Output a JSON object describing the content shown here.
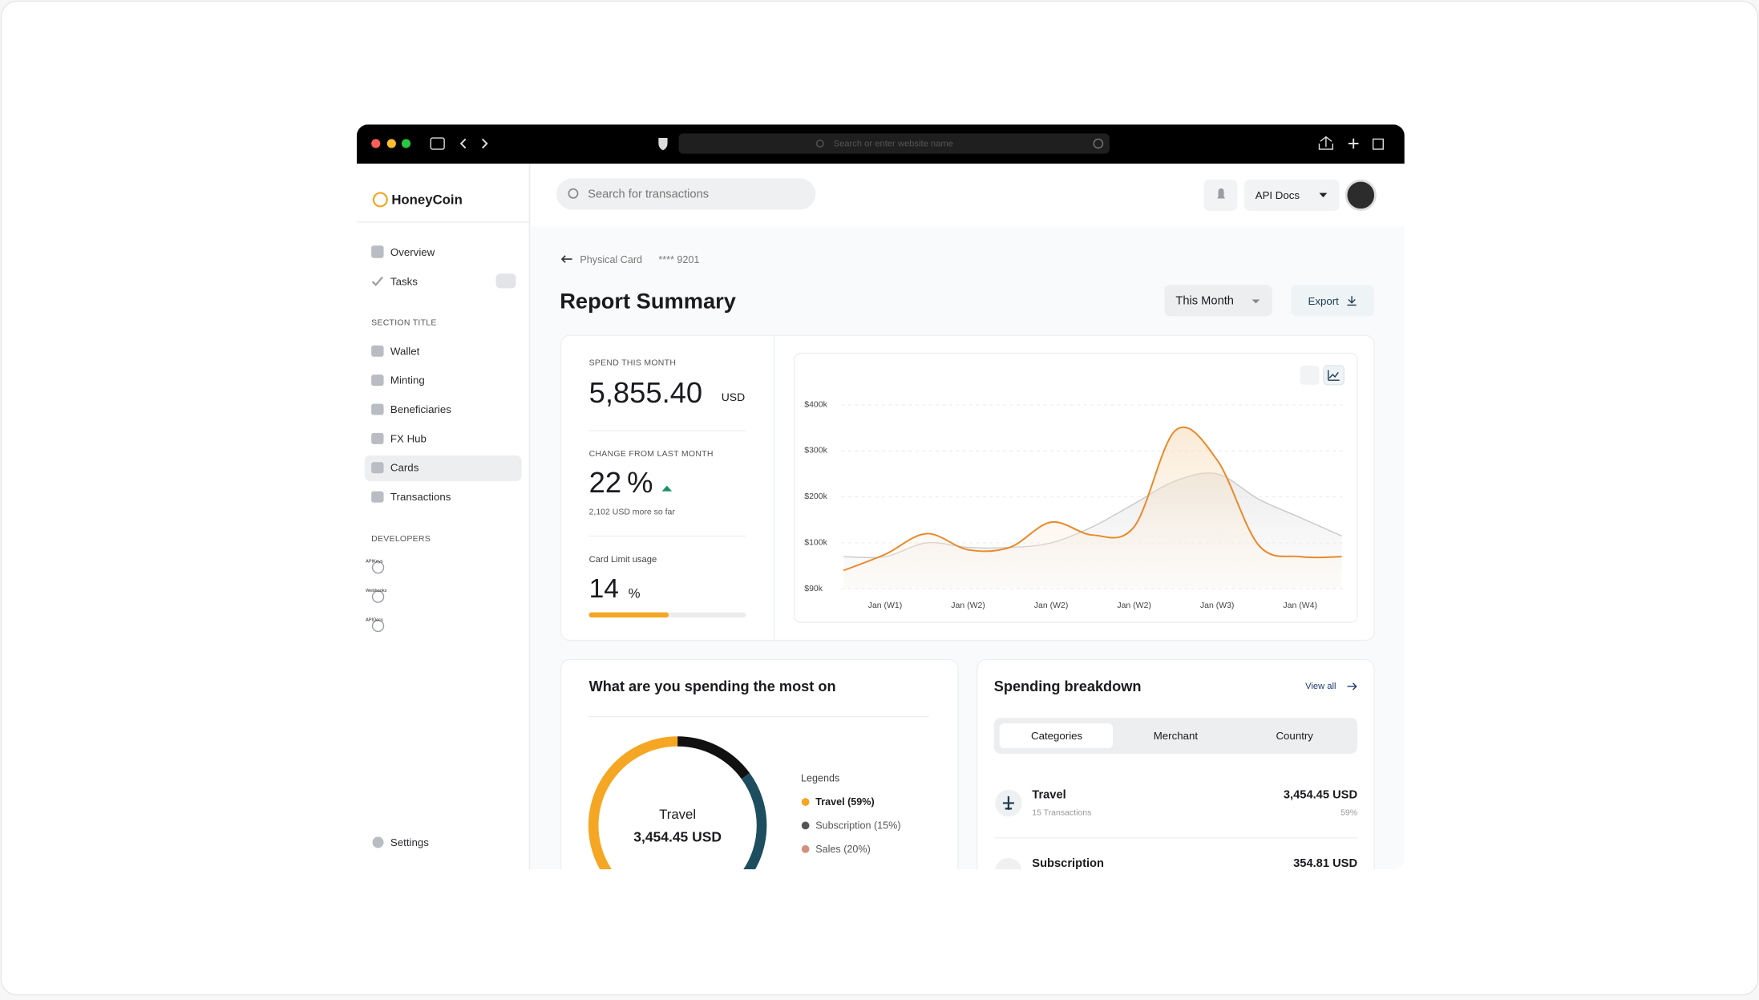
{
  "browser": {
    "address_placeholder": "Search or enter website name"
  },
  "sidebar": {
    "brand": "HoneyCoin",
    "nav": [
      "Overview",
      "Tasks"
    ],
    "section_title": "SECTION TITLE",
    "section_items": [
      "Wallet",
      "Minting",
      "Beneficiaries",
      "FX Hub",
      "Cards",
      "Transactions"
    ],
    "developers_title": "DEVELOPERS",
    "developer_items": [
      "APIKeys",
      "Webhooks",
      "APIDocs"
    ],
    "settings": "Settings"
  },
  "topbar": {
    "search_placeholder": "Search for transactions",
    "api_docs": "API Docs"
  },
  "breadcrumb": {
    "parent": "Physical Card",
    "card": "**** 9201"
  },
  "header": {
    "title": "Report Summary",
    "period": "This Month",
    "export": "Export"
  },
  "stats": [
    {
      "label": "SPEND THIS MONTH",
      "value": "5,855.40",
      "unit": "USD"
    },
    {
      "label": "CHANGE FROM LAST MONTH",
      "value": "22",
      "unit": "%",
      "note": "2,102 USD more so far"
    },
    {
      "label": "Card Limit usage",
      "value": "14",
      "unit": "%"
    }
  ],
  "chart_data": [
    {
      "type": "line",
      "categories": [
        null,
        "Jan (W1)",
        null,
        "Jan (W2)",
        null,
        "Jan (W2)",
        null,
        "Jan (W2)",
        null,
        "Jan (W3)",
        null,
        "Jan (W4)",
        null
      ],
      "series": [
        {
          "color": "#c8c8c8",
          "values": [
            97000,
            97000,
            100000,
            99000,
            99000,
            100000,
            135000,
            185000,
            235000,
            250000,
            195000,
            155000,
            115000
          ]
        },
        {
          "color": "#e8892a",
          "values": [
            94000,
            97500,
            120000,
            98500,
            99000,
            145000,
            117000,
            135000,
            345000,
            280000,
            99500,
            97000,
            97000
          ]
        }
      ],
      "ylim": [
        90000,
        400000
      ],
      "yticks": [
        {
          "value": 90000,
          "label": "$90k"
        },
        {
          "value": 100000,
          "label": "$100k"
        },
        {
          "value": 200000,
          "label": "$200k"
        },
        {
          "value": 300000,
          "label": "$300k"
        },
        {
          "value": 400000,
          "label": "$400k"
        }
      ],
      "grid": true
    },
    {
      "type": "pie",
      "title": "What are you spending the most on",
      "legend_title": "Legends",
      "center_label": "Travel",
      "center_value": "3,454.45 USD",
      "categories": [
        "Travel (59%)",
        "Subscription (15%)",
        "Sales (20%)"
      ],
      "values": [
        59,
        15,
        20
      ],
      "colors": [
        "#f5a623",
        "#111111",
        "#1d4e5f"
      ],
      "legend_colors": [
        "#f5a623",
        "#555555",
        "#d4907f"
      ]
    }
  ],
  "breakdown": {
    "title": "Spending breakdown",
    "view_all": "View all",
    "tabs": [
      "Categories",
      "Merchant",
      "Country"
    ],
    "rows": [
      {
        "name": "Travel",
        "detail": "15 Transactions",
        "amount": "3,454.45 USD",
        "share": "59%"
      },
      {
        "name": "Subscription",
        "amount": "354.81 USD"
      }
    ]
  }
}
